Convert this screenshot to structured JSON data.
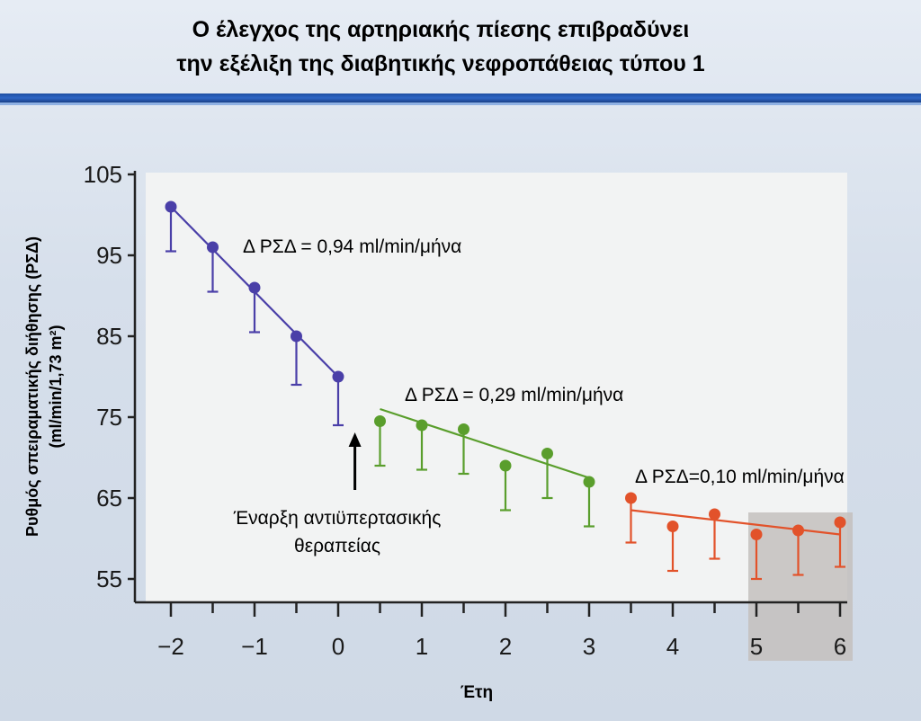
{
  "slide": {
    "title_line1": "Ο έλεγχος της αρτηριακής πίεσης επιβραδύνει",
    "title_line2": "την εξέλιξη της διαβητικής νεφροπάθειας τύπου 1"
  },
  "chart_data": {
    "type": "line",
    "xlabel": "Έτη",
    "ylabel_line1": "Ρυθμός σπειραματικής διήθησης (ΡΣΔ)",
    "ylabel_line2": "(ml/min/1,73 m²)",
    "xlim": [
      -2.2,
      6.1
    ],
    "ylim": [
      52,
      105
    ],
    "yticks": [
      105,
      95,
      85,
      75,
      65,
      55
    ],
    "xticks": [
      -2,
      -1,
      0,
      1,
      2,
      3,
      4,
      5,
      6
    ],
    "xtick_labels": [
      "−2",
      "−1",
      "0",
      "1",
      "2",
      "3",
      "4",
      "5",
      "6"
    ],
    "grid": false,
    "series": [
      {
        "color": "#4a3fa8",
        "label": "Δ ΡΣΔ = 0,94 ml/min/μήνα",
        "points": [
          {
            "x": -2.0,
            "y": 101,
            "err": 5.5
          },
          {
            "x": -1.5,
            "y": 96,
            "err": 5.5
          },
          {
            "x": -1.0,
            "y": 91,
            "err": 5.5
          },
          {
            "x": -0.5,
            "y": 85,
            "err": 6.0
          },
          {
            "x": 0.0,
            "y": 80,
            "err": 6.0
          }
        ],
        "fit": [
          [
            -2.0,
            101
          ],
          [
            0.0,
            80
          ]
        ]
      },
      {
        "color": "#5a9e2c",
        "label": "Δ ΡΣΔ = 0,29 ml/min/μήνα",
        "points": [
          {
            "x": 0.5,
            "y": 74.5,
            "err": 5.5
          },
          {
            "x": 1.0,
            "y": 74,
            "err": 5.5
          },
          {
            "x": 1.5,
            "y": 73.5,
            "err": 5.5
          },
          {
            "x": 2.0,
            "y": 69,
            "err": 5.5
          },
          {
            "x": 2.5,
            "y": 70.5,
            "err": 5.5
          },
          {
            "x": 3.0,
            "y": 67,
            "err": 5.5
          }
        ],
        "fit": [
          [
            0.5,
            76
          ],
          [
            3.0,
            67.5
          ]
        ]
      },
      {
        "color": "#e2522a",
        "label": "Δ ΡΣΔ=0,10 ml/min/μήνα",
        "points": [
          {
            "x": 3.5,
            "y": 65,
            "err": 5.5
          },
          {
            "x": 4.0,
            "y": 61.5,
            "err": 5.5
          },
          {
            "x": 4.5,
            "y": 63,
            "err": 5.5
          },
          {
            "x": 5.0,
            "y": 60.5,
            "err": 5.5
          },
          {
            "x": 5.5,
            "y": 61,
            "err": 5.5
          },
          {
            "x": 6.0,
            "y": 62,
            "err": 5.5
          }
        ],
        "fit": [
          [
            3.5,
            63.5
          ],
          [
            6.0,
            60.5
          ]
        ]
      }
    ],
    "annotations": {
      "arrow_x": 0.2,
      "line1": "Έναρξη αντιϋπερτασικής",
      "line2": "θεραπείας"
    }
  }
}
